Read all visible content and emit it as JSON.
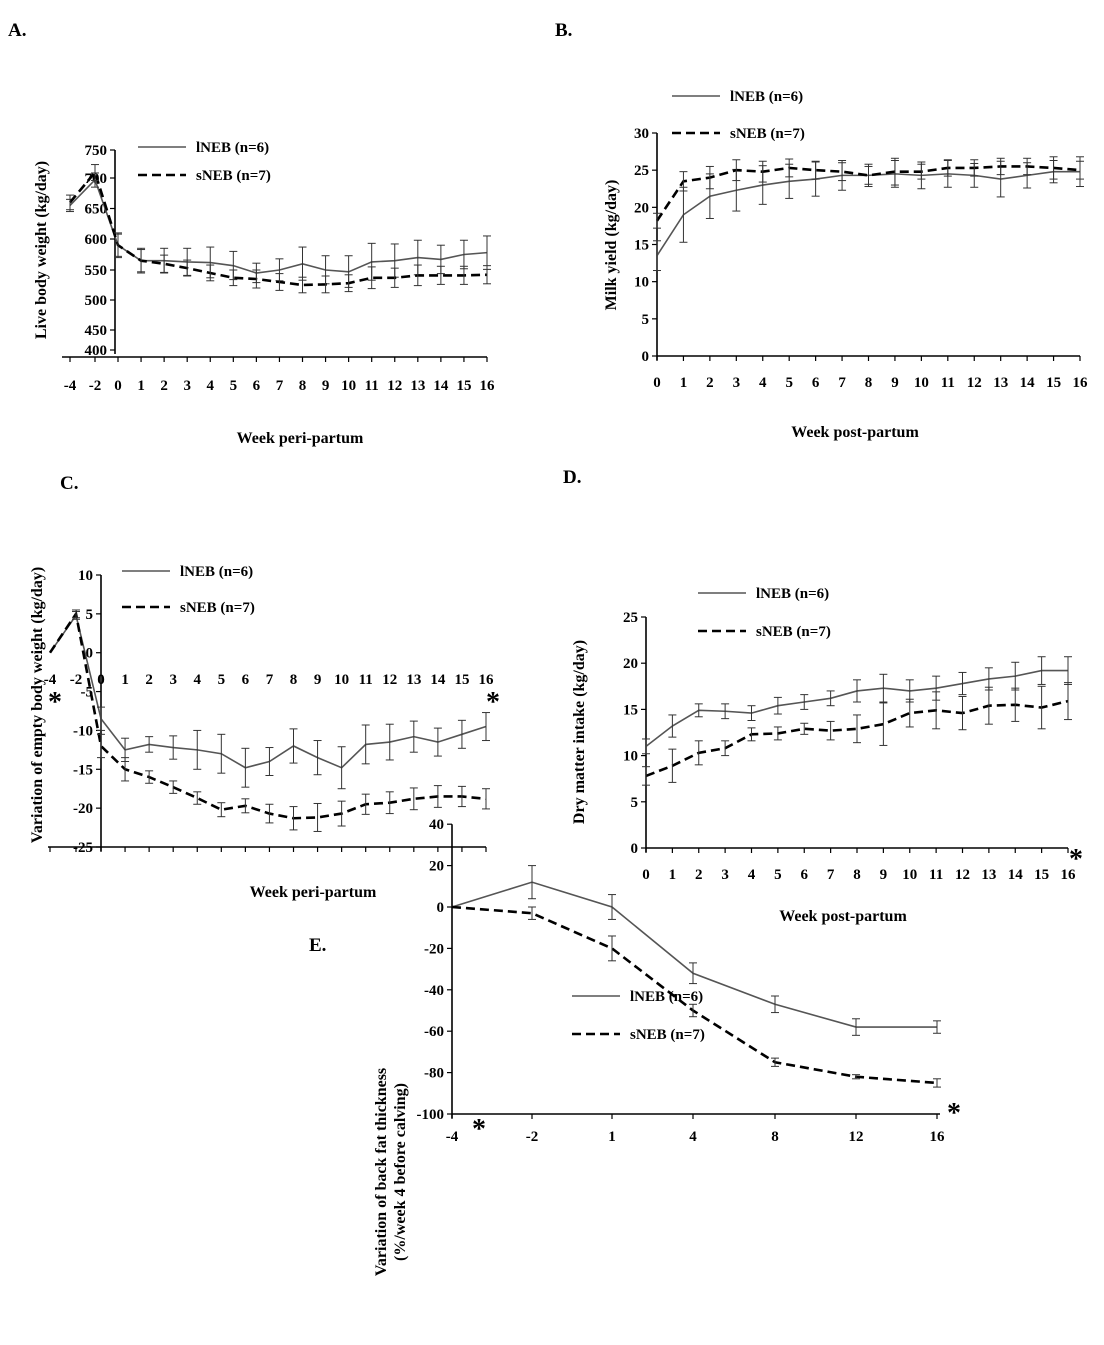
{
  "figure": {
    "series_names": [
      "lNEB (n=6)",
      "sNEB (n=7)"
    ],
    "significance_marker": "*"
  },
  "chart_data": [
    {
      "id": "A",
      "panel_label": "A.",
      "type": "line",
      "xlabel": "Week peri-partum",
      "ylabel": "Live body weight (kg/day)",
      "x": [
        -4,
        -2,
        0,
        1,
        2,
        3,
        4,
        5,
        6,
        7,
        8,
        9,
        10,
        11,
        12,
        13,
        14,
        15,
        16
      ],
      "x_ticks": [
        "-4",
        "-2",
        "0",
        "1",
        "2",
        "3",
        "4",
        "5",
        "6",
        "7",
        "8",
        "9",
        "10",
        "11",
        "12",
        "13",
        "14",
        "15",
        "16"
      ],
      "y_ticks": [
        "400",
        "450",
        "500",
        "550",
        "600",
        "650",
        "700",
        "750"
      ],
      "ylim": [
        400,
        750
      ],
      "series": [
        {
          "name": "lNEB (n=6)",
          "style": "solid",
          "values": [
            655,
            697,
            590,
            565,
            565,
            563,
            562,
            557,
            545,
            550,
            560,
            550,
            547,
            563,
            565,
            570,
            567,
            575,
            578
          ],
          "errors": [
            10,
            12,
            18,
            20,
            20,
            22,
            25,
            23,
            16,
            18,
            27,
            23,
            26,
            30,
            27,
            28,
            23,
            23,
            27
          ]
        },
        {
          "name": "sNEB (n=7)",
          "style": "dashed",
          "values": [
            660,
            710,
            590,
            565,
            560,
            553,
            545,
            537,
            535,
            530,
            525,
            526,
            528,
            537,
            537,
            541,
            541,
            541,
            542
          ],
          "errors": [
            12,
            14,
            20,
            18,
            14,
            13,
            13,
            13,
            15,
            14,
            13,
            14,
            14,
            18,
            16,
            17,
            15,
            15,
            15
          ]
        }
      ]
    },
    {
      "id": "B",
      "panel_label": "B.",
      "type": "line",
      "xlabel": "Week post-partum",
      "ylabel": "Milk yield (kg/day)",
      "x": [
        0,
        1,
        2,
        3,
        4,
        5,
        6,
        7,
        8,
        9,
        10,
        11,
        12,
        13,
        14,
        15,
        16
      ],
      "x_ticks": [
        "0",
        "1",
        "2",
        "3",
        "4",
        "5",
        "6",
        "7",
        "8",
        "9",
        "10",
        "11",
        "12",
        "13",
        "14",
        "15",
        "16"
      ],
      "y_ticks": [
        "0",
        "5",
        "10",
        "15",
        "20",
        "25",
        "30"
      ],
      "ylim": [
        0,
        30
      ],
      "series": [
        {
          "name": "lNEB (n=6)",
          "style": "solid",
          "values": [
            13.5,
            19,
            21.5,
            22.3,
            23,
            23.5,
            23.8,
            24.3,
            24.3,
            24.5,
            24.3,
            24.5,
            24.3,
            23.8,
            24.3,
            24.8,
            24.8
          ],
          "errors": [
            2,
            3.7,
            3,
            2.8,
            2.6,
            2.3,
            2.3,
            2,
            1.5,
            1.8,
            1.8,
            1.8,
            1.6,
            2.4,
            1.7,
            1.5,
            2
          ]
        },
        {
          "name": "sNEB (n=7)",
          "style": "dashed",
          "values": [
            18.2,
            23.5,
            24,
            25,
            24.8,
            25.3,
            25,
            24.8,
            24.3,
            24.8,
            24.8,
            25.3,
            25.3,
            25.5,
            25.5,
            25.3,
            25
          ]
        },
        {
          "name": "sNEB (n=7)",
          "style": "dashed",
          "errors_only": true,
          "errors": [
            1,
            1.3,
            1.5,
            1.4,
            1.4,
            1.2,
            1.2,
            1.2,
            1.2,
            1.8,
            1,
            1.1,
            1.1,
            1.1,
            1.1,
            1.5,
            1.2
          ]
        }
      ]
    },
    {
      "id": "C",
      "panel_label": "C.",
      "type": "line",
      "xlabel": "Week peri-partum",
      "ylabel": "Variation of empty body weight (kg/day)",
      "x": [
        -4,
        -2,
        0,
        1,
        2,
        3,
        4,
        5,
        6,
        7,
        8,
        9,
        10,
        11,
        12,
        13,
        14,
        15,
        16
      ],
      "x_ticks": [
        "-4",
        "-2",
        "0",
        "1",
        "2",
        "3",
        "4",
        "5",
        "6",
        "7",
        "8",
        "9",
        "10",
        "11",
        "12",
        "13",
        "14",
        "15",
        "16"
      ],
      "y_ticks": [
        "-25",
        "-20",
        "-15",
        "-10",
        "-5",
        "0",
        "5",
        "10"
      ],
      "ylim": [
        -25,
        10
      ],
      "significance_at": [
        -4,
        16
      ],
      "series": [
        {
          "name": "lNEB (n=6)",
          "style": "solid",
          "values": [
            0,
            4.8,
            -8.5,
            -12.5,
            -11.8,
            -12.2,
            -12.5,
            -13,
            -14.8,
            -14,
            -12,
            -13.5,
            -14.8,
            -11.8,
            -11.5,
            -10.8,
            -11.5,
            -10.5,
            -9.5
          ],
          "errors": [
            0,
            0.5,
            1.5,
            1.5,
            1,
            1.5,
            2.5,
            2.5,
            2.5,
            1.8,
            2.2,
            2.2,
            2.7,
            2.5,
            2.3,
            2,
            1.8,
            1.8,
            1.8
          ]
        },
        {
          "name": "sNEB (n=7)",
          "style": "dashed",
          "values": [
            0,
            5,
            -12,
            -15,
            -16,
            -17.3,
            -18.7,
            -20.2,
            -19.7,
            -20.7,
            -21.3,
            -21.2,
            -20.7,
            -19.5,
            -19.3,
            -18.8,
            -18.5,
            -18.5,
            -18.8
          ],
          "errors": [
            0,
            0.5,
            1.5,
            1.5,
            0.8,
            0.8,
            0.8,
            0.9,
            0.9,
            1.2,
            1.5,
            1.8,
            1.6,
            1.3,
            1.4,
            1.4,
            1.4,
            1.3,
            1.3
          ]
        }
      ]
    },
    {
      "id": "D",
      "panel_label": "D.",
      "type": "line",
      "xlabel": "Week post-partum",
      "ylabel": "Dry matter intake (kg/day)",
      "x": [
        0,
        1,
        2,
        3,
        4,
        5,
        6,
        7,
        8,
        9,
        10,
        11,
        12,
        13,
        14,
        15,
        16
      ],
      "x_ticks": [
        "0",
        "1",
        "2",
        "3",
        "4",
        "5",
        "6",
        "7",
        "8",
        "9",
        "10",
        "11",
        "12",
        "13",
        "14",
        "15",
        "16"
      ],
      "y_ticks": [
        "0",
        "5",
        "10",
        "15",
        "20",
        "25"
      ],
      "ylim": [
        0,
        25
      ],
      "significance_at": [
        16
      ],
      "series": [
        {
          "name": "lNEB (n=6)",
          "style": "solid",
          "values": [
            11,
            13.2,
            14.9,
            14.8,
            14.6,
            15.4,
            15.8,
            16.2,
            17,
            17.3,
            17,
            17.3,
            17.8,
            18.3,
            18.6,
            19.2,
            19.2
          ],
          "errors": [
            0.8,
            1.2,
            0.7,
            0.8,
            0.8,
            0.9,
            0.8,
            0.8,
            1.2,
            1.5,
            1.2,
            1.3,
            1.2,
            1.2,
            1.5,
            1.5,
            1.5
          ]
        },
        {
          "name": "sNEB (n=7)",
          "style": "dashed",
          "values": [
            7.8,
            8.9,
            10.3,
            10.8,
            12.3,
            12.4,
            12.9,
            12.7,
            12.9,
            13.4,
            14.6,
            14.9,
            14.6,
            15.4,
            15.5,
            15.2,
            15.9
          ],
          "errors": [
            1,
            1.8,
            1.3,
            0.8,
            0.7,
            0.7,
            0.6,
            1,
            1.5,
            2.3,
            1.5,
            2,
            1.8,
            2,
            1.8,
            2.3,
            2
          ]
        }
      ]
    },
    {
      "id": "E",
      "panel_label": "E.",
      "type": "line",
      "xlabel": "",
      "ylabel": "Variation of back fat thickness",
      "ylabel2": "(%/week 4 before calving)",
      "x": [
        -4,
        -2,
        1,
        4,
        8,
        12,
        16
      ],
      "x_ticks": [
        "-4",
        "-2",
        "1",
        "4",
        "8",
        "12",
        "16"
      ],
      "y_ticks": [
        "-100",
        "-80",
        "-60",
        "-40",
        "-20",
        "0",
        "20",
        "40"
      ],
      "ylim": [
        -100,
        40
      ],
      "significance_at": [
        -4,
        16
      ],
      "series": [
        {
          "name": "lNEB (n=6)",
          "style": "solid",
          "values": [
            0,
            12,
            0,
            -32,
            -47,
            -58,
            -58
          ],
          "errors": [
            0,
            8,
            6,
            5,
            4,
            4,
            3
          ]
        },
        {
          "name": "sNEB (n=7)",
          "style": "dashed",
          "values": [
            0,
            -3,
            -20,
            -50,
            -75,
            -82,
            -85
          ],
          "errors": [
            0,
            3,
            6,
            3,
            2,
            1,
            2
          ]
        }
      ]
    }
  ]
}
